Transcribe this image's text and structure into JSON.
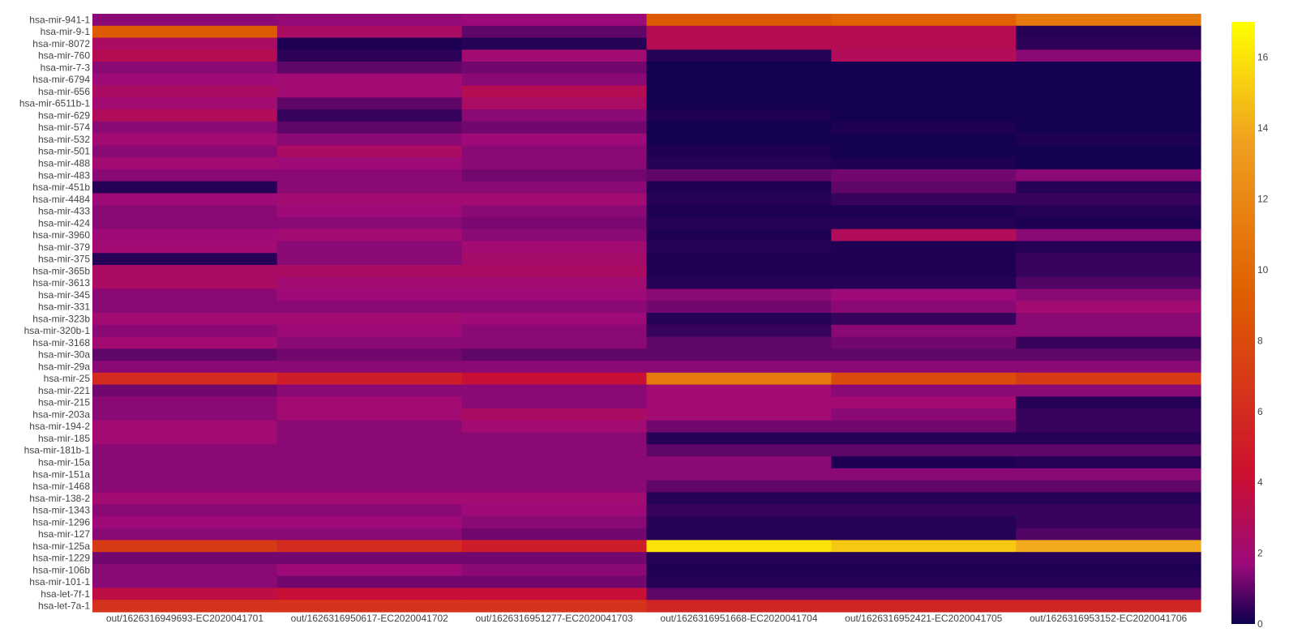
{
  "chart_data": {
    "type": "heatmap",
    "title": "",
    "xlabel": "",
    "ylabel": "",
    "x_categories": [
      "out/1626316949693-EC2020041701",
      "out/1626316950617-EC2020041702",
      "out/1626316951277-EC2020041703",
      "out/1626316951668-EC2020041704",
      "out/1626316952421-EC2020041705",
      "out/1626316953152-EC2020041706"
    ],
    "y_tick_labels": [
      "hsa-mir-941-1",
      "hsa-mir-9-1",
      "hsa-mir-8072",
      "hsa-mir-760",
      "hsa-mir-7-3",
      "hsa-mir-6794",
      "hsa-mir-656",
      "hsa-mir-6511b-1",
      "hsa-mir-629",
      "hsa-mir-574",
      "hsa-mir-532",
      "hsa-mir-501",
      "hsa-mir-488",
      "hsa-mir-483",
      "hsa-mir-451b",
      "hsa-mir-4484",
      "hsa-mir-433",
      "hsa-mir-424",
      "hsa-mir-3960",
      "hsa-mir-379",
      "hsa-mir-375",
      "hsa-mir-365b",
      "hsa-mir-3613",
      "hsa-mir-345",
      "hsa-mir-331",
      "hsa-mir-323b",
      "hsa-mir-320b-1",
      "hsa-mir-3168",
      "hsa-mir-30a",
      "hsa-mir-29a",
      "hsa-mir-25",
      "hsa-mir-221",
      "hsa-mir-215",
      "hsa-mir-203a",
      "hsa-mir-194-2",
      "hsa-mir-185",
      "hsa-mir-181b-1",
      "hsa-mir-15a",
      "hsa-mir-151a",
      "hsa-mir-1468",
      "hsa-mir-138-2",
      "hsa-mir-1343",
      "hsa-mir-1296",
      "hsa-mir-127",
      "hsa-mir-125a",
      "hsa-mir-1229",
      "hsa-mir-106b",
      "hsa-mir-101-1",
      "hsa-let-7f-1",
      "hsa-let-7a-1"
    ],
    "z_values_sampled_per_label": [
      [
        1.5,
        1.6,
        1.7,
        9.0,
        9.5,
        11.0
      ],
      [
        9.0,
        2.5,
        1.0,
        3.0,
        3.0,
        0.3
      ],
      [
        2.5,
        0.2,
        0.3,
        3.0,
        3.0,
        0.4
      ],
      [
        3.0,
        0.4,
        2.0,
        0.3,
        2.8,
        1.5
      ],
      [
        1.5,
        1.0,
        1.2,
        0.1,
        0.1,
        0.1
      ],
      [
        1.8,
        2.0,
        1.5,
        0.1,
        0.1,
        0.1
      ],
      [
        2.5,
        2.0,
        3.0,
        0.1,
        0.1,
        0.1
      ],
      [
        2.0,
        1.0,
        2.5,
        0.1,
        0.1,
        0.1
      ],
      [
        2.8,
        0.5,
        1.5,
        0.2,
        0.1,
        0.1
      ],
      [
        1.5,
        1.0,
        1.2,
        0.1,
        0.2,
        0.1
      ],
      [
        2.0,
        1.5,
        1.8,
        0.1,
        0.1,
        0.2
      ],
      [
        1.5,
        2.5,
        1.5,
        0.2,
        0.1,
        0.1
      ],
      [
        2.0,
        1.8,
        1.5,
        0.3,
        0.2,
        0.1
      ],
      [
        1.5,
        1.5,
        1.2,
        1.0,
        1.2,
        1.5
      ],
      [
        0.3,
        1.5,
        1.5,
        0.2,
        1.0,
        0.3
      ],
      [
        1.8,
        2.0,
        2.0,
        0.3,
        0.5,
        0.5
      ],
      [
        1.5,
        1.8,
        1.5,
        0.2,
        0.2,
        0.3
      ],
      [
        1.5,
        1.5,
        1.3,
        0.3,
        0.3,
        0.2
      ],
      [
        1.8,
        2.0,
        1.5,
        0.2,
        2.8,
        1.5
      ],
      [
        2.0,
        1.5,
        2.0,
        0.3,
        0.2,
        0.3
      ],
      [
        0.3,
        1.5,
        2.2,
        0.2,
        0.2,
        0.5
      ],
      [
        2.5,
        2.5,
        2.5,
        0.2,
        0.2,
        0.5
      ],
      [
        2.5,
        2.0,
        2.0,
        0.3,
        0.3,
        0.8
      ],
      [
        1.5,
        1.8,
        1.8,
        1.5,
        1.8,
        1.5
      ],
      [
        1.5,
        1.5,
        1.5,
        1.2,
        1.5,
        2.0
      ],
      [
        2.0,
        2.0,
        1.8,
        0.3,
        0.5,
        1.5
      ],
      [
        1.5,
        1.8,
        1.5,
        0.5,
        1.5,
        1.5
      ],
      [
        2.0,
        1.5,
        1.5,
        1.0,
        1.2,
        0.5
      ],
      [
        1.0,
        1.2,
        1.0,
        1.0,
        1.0,
        1.0
      ],
      [
        1.5,
        1.5,
        1.5,
        1.5,
        1.5,
        1.5
      ],
      [
        6.0,
        5.0,
        4.0,
        11.0,
        8.0,
        7.0
      ],
      [
        1.2,
        1.5,
        1.5,
        2.0,
        1.5,
        1.5
      ],
      [
        1.5,
        2.0,
        1.5,
        2.0,
        2.0,
        0.3
      ],
      [
        1.5,
        2.0,
        2.5,
        2.0,
        1.5,
        0.5
      ],
      [
        2.0,
        1.5,
        2.0,
        1.2,
        1.2,
        0.5
      ],
      [
        2.0,
        1.5,
        1.5,
        0.3,
        0.3,
        0.3
      ],
      [
        1.5,
        1.5,
        1.5,
        1.0,
        1.0,
        1.0
      ],
      [
        1.5,
        1.5,
        1.5,
        1.5,
        0.2,
        0.3
      ],
      [
        1.5,
        1.5,
        1.5,
        1.5,
        1.5,
        1.5
      ],
      [
        1.5,
        1.5,
        1.5,
        1.0,
        1.0,
        1.0
      ],
      [
        2.0,
        2.0,
        2.0,
        0.3,
        0.3,
        0.3
      ],
      [
        1.5,
        1.5,
        1.8,
        0.5,
        0.5,
        0.5
      ],
      [
        1.8,
        1.8,
        1.5,
        0.3,
        0.3,
        0.5
      ],
      [
        1.5,
        1.5,
        1.2,
        0.3,
        0.3,
        0.8
      ],
      [
        7.0,
        6.0,
        5.0,
        16.0,
        15.0,
        14.0
      ],
      [
        1.2,
        1.2,
        1.2,
        0.3,
        0.3,
        0.3
      ],
      [
        1.5,
        1.8,
        1.5,
        0.2,
        0.2,
        0.2
      ],
      [
        1.5,
        1.2,
        1.2,
        0.3,
        0.3,
        0.3
      ],
      [
        3.5,
        4.0,
        4.0,
        1.0,
        1.0,
        1.0
      ],
      [
        6.5,
        6.5,
        6.5,
        5.5,
        5.5,
        5.5
      ]
    ],
    "colorscale": {
      "name": "Plasma-like (dark navy → magenta → red → orange → yellow)",
      "stops": [
        "#0d0050",
        "#9c0a7a",
        "#cc1030",
        "#e06000",
        "#f0a020",
        "#ffff00"
      ],
      "cmin": 0,
      "cmax": 17,
      "tickvals": [
        0,
        2,
        4,
        6,
        8,
        10,
        12,
        14,
        16
      ]
    },
    "legend": "right (colorbar)",
    "grid": false
  }
}
